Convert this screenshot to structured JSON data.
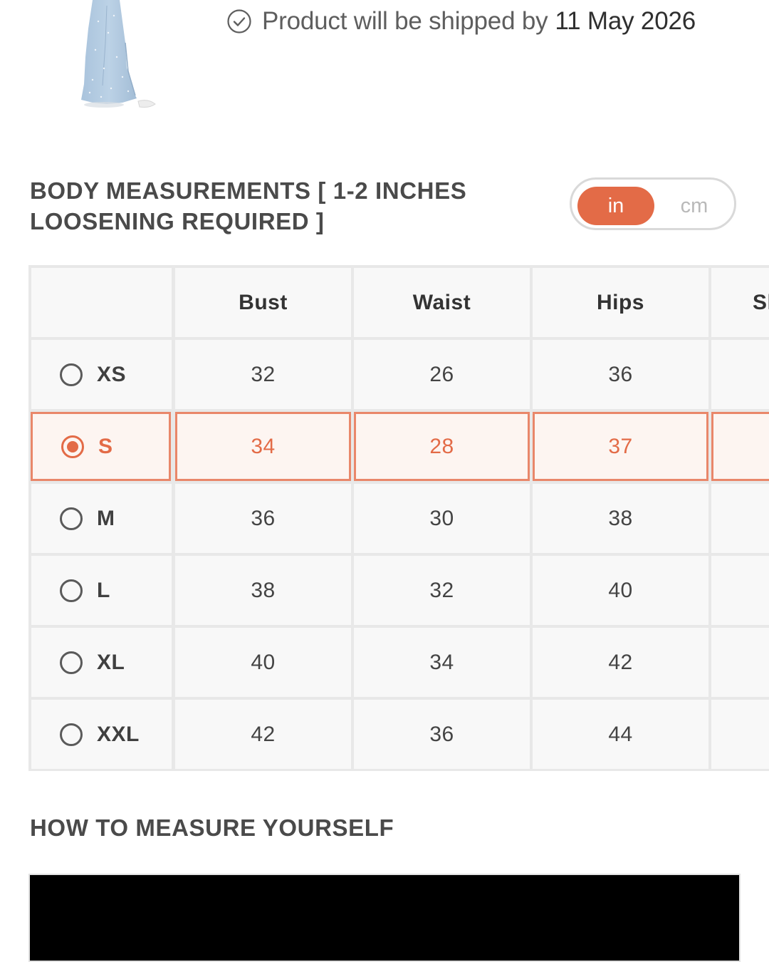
{
  "shipping": {
    "text": "Product will be shipped by",
    "date": "11 May 2026",
    "icon": "check-circle-icon"
  },
  "measurements": {
    "title": "BODY MEASUREMENTS [ 1-2 INCHES LOOSENING REQUIRED ]",
    "units": {
      "in_label": "in",
      "cm_label": "cm",
      "selected": "in"
    },
    "columns": [
      "",
      "Bust",
      "Waist",
      "Hips",
      "Sh"
    ],
    "rows": [
      {
        "size": "XS",
        "values": [
          "32",
          "26",
          "36",
          ""
        ]
      },
      {
        "size": "S",
        "values": [
          "34",
          "28",
          "37",
          ""
        ],
        "selected": true
      },
      {
        "size": "M",
        "values": [
          "36",
          "30",
          "38",
          ""
        ]
      },
      {
        "size": "L",
        "values": [
          "38",
          "32",
          "40",
          ""
        ]
      },
      {
        "size": "XL",
        "values": [
          "40",
          "34",
          "42",
          ""
        ]
      },
      {
        "size": "XXL",
        "values": [
          "42",
          "36",
          "44",
          ""
        ]
      }
    ],
    "accent_color": "#e36b47"
  },
  "how_to_measure": {
    "title": "HOW TO MEASURE YOURSELF"
  }
}
